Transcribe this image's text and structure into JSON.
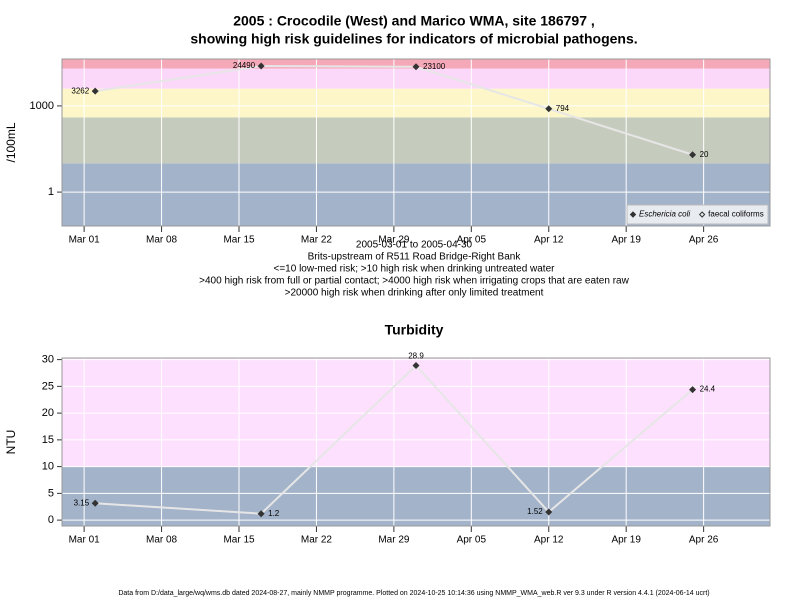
{
  "chart_data": [
    {
      "type": "line",
      "title": [
        "2005 : Crocodile (West) and Marico WMA, site 186797 ,",
        "showing high risk guidelines for indicators of microbial pathogens."
      ],
      "subtitle": [
        "2005-03-01 to 2005-04-30",
        "Brits-upstream of R511 Road Bridge-Right Bank",
        "<=10 low-med risk; >10 high risk when drinking untreated water",
        ">400 high risk from full or partial contact; >4000 high risk when irrigating crops that are eaten raw",
        ">20000 high risk when drinking after only limited treatment"
      ],
      "y_label": "/100mL",
      "x": [
        "2005-03-02",
        "2005-03-17",
        "2005-03-31",
        "2005-04-12",
        "2005-04-25"
      ],
      "series": [
        {
          "name": "Eschericia coli",
          "color": "#333333",
          "values": [
            3262,
            24490,
            23100,
            794,
            20
          ]
        },
        {
          "name": "faecal coliforms",
          "color": "#333333",
          "values": [
            null,
            null,
            null,
            null,
            null
          ]
        }
      ],
      "line_color": "#e6e6e6",
      "log_y": true,
      "ylim": [
        0.066,
        43000
      ],
      "yticks": [
        1,
        1000
      ],
      "xlim": [
        "2005-02-27",
        "2005-05-02"
      ],
      "xticks": [
        {
          "value": "2005-03-01",
          "label": "Mar 01"
        },
        {
          "value": "2005-03-08",
          "label": "Mar 08"
        },
        {
          "value": "2005-03-15",
          "label": "Mar 15"
        },
        {
          "value": "2005-03-22",
          "label": "Mar 22"
        },
        {
          "value": "2005-03-29",
          "label": "Mar 29"
        },
        {
          "value": "2005-04-05",
          "label": "Apr 05"
        },
        {
          "value": "2005-04-12",
          "label": "Apr 12"
        },
        {
          "value": "2005-04-19",
          "label": "Apr 19"
        },
        {
          "value": "2005-04-26",
          "label": "Apr 26"
        }
      ],
      "band_edges": [
        10,
        400,
        4000,
        20000
      ],
      "band_colors": [
        "#a3b3c9",
        "#c6ccbd",
        "#fdf6c9",
        "#fbd8fa",
        "#f5a9b8"
      ],
      "grid": true,
      "legend": "bottom right"
    },
    {
      "type": "line",
      "title": [
        "Turbidity"
      ],
      "y_label": "NTU",
      "x": [
        "2005-03-02",
        "2005-03-17",
        "2005-03-31",
        "2005-04-12",
        "2005-04-25"
      ],
      "series": [
        {
          "color": "#333333",
          "values": [
            3.15,
            1.2,
            28.9,
            1.52,
            24.4
          ]
        }
      ],
      "line_color": "#e6e6e6",
      "log_y": false,
      "ylim": [
        -1.1,
        30.3
      ],
      "yticks": [
        0,
        5,
        10,
        15,
        20,
        25,
        30
      ],
      "xlim": [
        "2005-02-27",
        "2005-05-02"
      ],
      "xticks": [
        {
          "value": "2005-03-01",
          "label": "Mar 01"
        },
        {
          "value": "2005-03-08",
          "label": "Mar 08"
        },
        {
          "value": "2005-03-15",
          "label": "Mar 15"
        },
        {
          "value": "2005-03-22",
          "label": "Mar 22"
        },
        {
          "value": "2005-03-29",
          "label": "Mar 29"
        },
        {
          "value": "2005-04-05",
          "label": "Apr 05"
        },
        {
          "value": "2005-04-12",
          "label": "Apr 12"
        },
        {
          "value": "2005-04-19",
          "label": "Apr 19"
        },
        {
          "value": "2005-04-26",
          "label": "Apr 26"
        }
      ],
      "band_edges": [
        10
      ],
      "band_colors": [
        "#a3b3c9",
        "#fde0fd"
      ],
      "grid": true
    }
  ],
  "footer": "Data from D:/data_large/wq/wms.db dated 2024-08-27, mainly NMMP programme. Plotted on 2024-10-25 10:14:36 using NMMP_WMA_web.R ver 9.3 under R version 4.4.1 (2024-06-14 ucrt)"
}
